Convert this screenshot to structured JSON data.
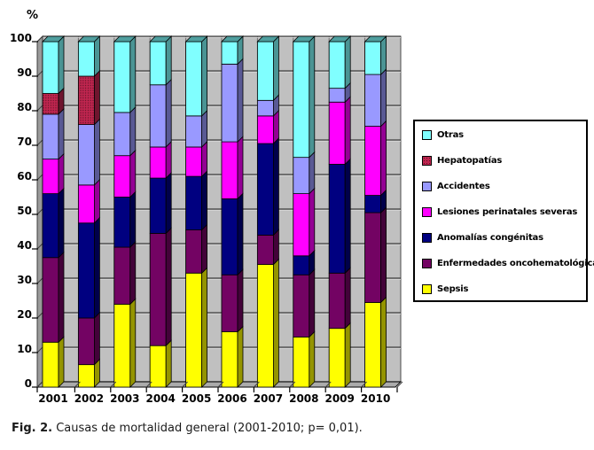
{
  "figure": {
    "percent_label": "%",
    "caption_prefix": "Fig. 2.",
    "caption_text": " Causas de mortalidad general (2001-2010; p= 0,01)."
  },
  "legend": {
    "position": "right",
    "items": [
      {
        "label": "Otras",
        "color": "#80FFFF",
        "pattern": "solid"
      },
      {
        "label": "Hepatopatías",
        "color": "#C0254F",
        "pattern": "dots"
      },
      {
        "label": "Accidentes",
        "color": "#9999FF",
        "pattern": "solid"
      },
      {
        "label": "Lesiones perinatales severas",
        "color": "#FF00FF",
        "pattern": "solid"
      },
      {
        "label": "Anomalías congénitas",
        "color": "#000080",
        "pattern": "solid"
      },
      {
        "label": "Enfermedades oncohematológicas",
        "color": "#730363",
        "pattern": "solid"
      },
      {
        "label": "Sepsis",
        "color": "#FFFF00",
        "pattern": "solid"
      }
    ]
  },
  "chart_data": {
    "type": "bar",
    "stacked": true,
    "units": "percent",
    "style": "3d-stacked-column",
    "title": "",
    "xlabel": "",
    "ylabel": "%",
    "ylim": [
      0,
      100
    ],
    "ytick_step": 10,
    "ytick_labels": [
      "0",
      "10",
      "20",
      "30",
      "40",
      "50",
      "60",
      "70",
      "80",
      "90",
      "100"
    ],
    "grid": true,
    "wall_color": "#C0C0C0",
    "categories": [
      "2001",
      "2002",
      "2003",
      "2004",
      "2005",
      "2006",
      "2007",
      "2008",
      "2009",
      "2010"
    ],
    "series": [
      {
        "name": "Sepsis",
        "color": "#FFFF00",
        "pattern": "solid",
        "values": [
          13,
          6.5,
          24,
          12,
          33,
          16,
          35.5,
          14.5,
          17,
          24.5
        ]
      },
      {
        "name": "Enfermedades oncohematológicas",
        "color": "#730363",
        "pattern": "solid",
        "values": [
          24.5,
          13.5,
          16.5,
          32.5,
          12.5,
          16.5,
          8.5,
          18,
          16,
          26
        ]
      },
      {
        "name": "Anomalías congénitas",
        "color": "#000080",
        "pattern": "solid",
        "values": [
          18.5,
          27.5,
          14.5,
          16,
          15.5,
          22,
          26.5,
          5.5,
          31.5,
          5
        ]
      },
      {
        "name": "Lesiones perinatales severas",
        "color": "#FF00FF",
        "pattern": "solid",
        "values": [
          10,
          11,
          12,
          9,
          8.5,
          16.5,
          8,
          18,
          18,
          20
        ]
      },
      {
        "name": "Accidentes",
        "color": "#9999FF",
        "pattern": "solid",
        "values": [
          13,
          17.5,
          12.5,
          18,
          9,
          22.5,
          4.5,
          10.5,
          4,
          15
        ]
      },
      {
        "name": "Hepatopatías",
        "color": "#C0254F",
        "pattern": "dots",
        "values": [
          6,
          14,
          0,
          0,
          0,
          0,
          0,
          0,
          0,
          0
        ]
      },
      {
        "name": "Otras",
        "color": "#80FFFF",
        "pattern": "solid",
        "values": [
          15,
          10,
          20.5,
          12.5,
          21.5,
          6.5,
          17,
          33.5,
          13.5,
          9.5
        ]
      }
    ],
    "legend_position": "right"
  }
}
